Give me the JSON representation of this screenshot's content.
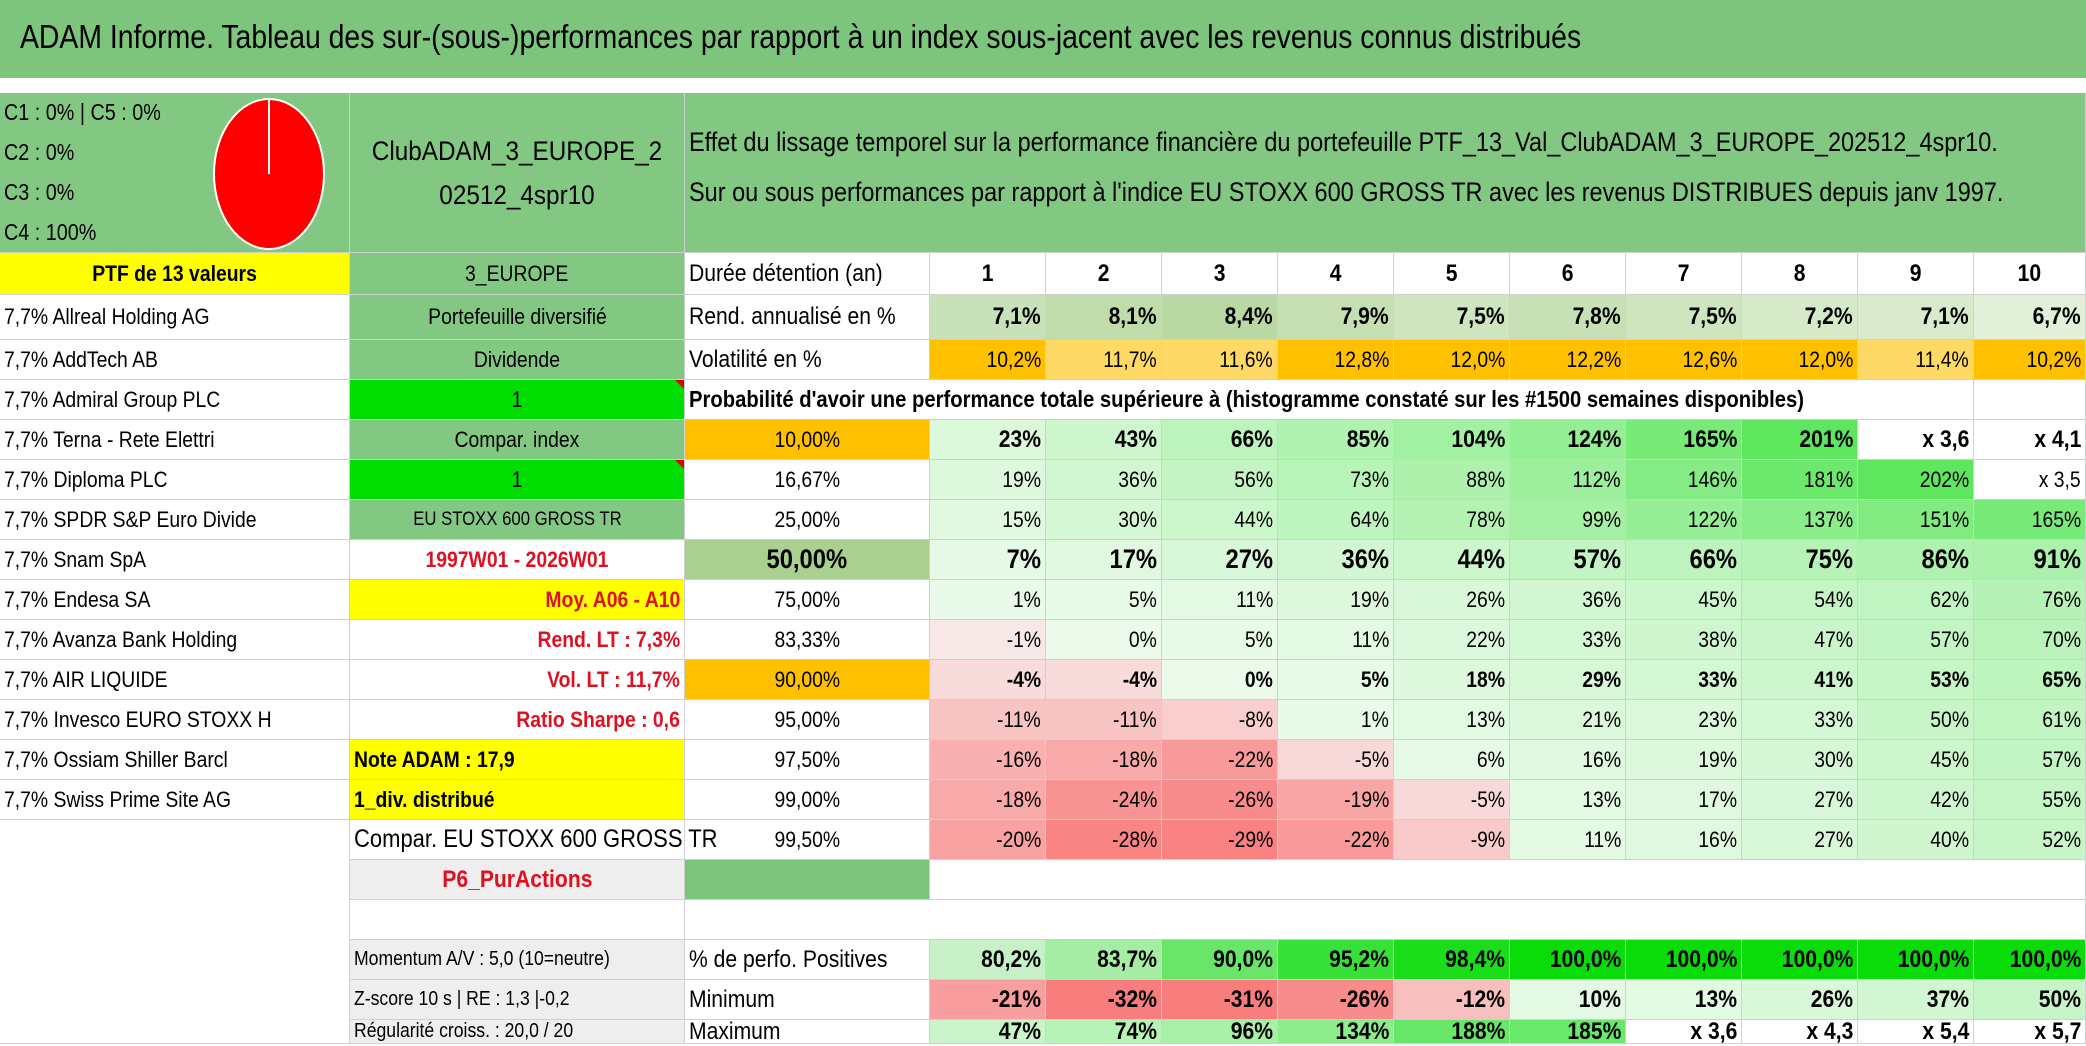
{
  "title": "ADAM Informe. Tableau des sur-(sous-)performances par rapport à un index sous-jacent avec les revenus connus distribués",
  "legend": [
    "C1 : 0% | C5 : 0%",
    "C2 : 0%",
    "C3 : 0%",
    "C4 : 100%"
  ],
  "pie": {
    "color": "#ff0000",
    "fraction": 1.0
  },
  "portfolio_name": "ClubADAM_3_EUROPE_202512_4spr10",
  "effect_text": [
    "Effet du lissage temporel sur la performance financière du portefeuille PTF_13_Val_ClubADAM_3_EUROPE_202512_4spr10.",
    "Sur ou sous performances par rapport à l'indice EU STOXX 600 GROSS TR avec les revenus DISTRIBUES depuis janv 1997."
  ],
  "ptf_header": "PTF de 13 valeurs",
  "holdings": [
    "7,7% Allreal Holding AG",
    "7,7% AddTech AB",
    "7,7% Admiral Group PLC",
    "7,7% Terna - Rete Elettri",
    "7,7% Diploma PLC",
    "7,7% SPDR S&P Euro Divide",
    "7,7% Snam SpA",
    "7,7% Endesa SA",
    "7,7% Avanza Bank Holding",
    "7,7% AIR LIQUIDE",
    "7,7% Invesco EURO STOXX H",
    "7,7% Ossiam Shiller Barcl",
    "7,7% Swiss Prime Site AG"
  ],
  "info": {
    "region": "3_EUROPE",
    "type": "Portefeuille diversifié",
    "dividende": "Dividende",
    "one_a": "1",
    "compar_index": "Compar. index",
    "one_b": "1",
    "index_name": "EU STOXX 600 GROSS TR",
    "period": "1997W01 - 2026W01",
    "moy": "Moy. A06 - A10",
    "rend_lt": "Rend. LT : 7,3%",
    "vol_lt": "Vol. LT : 11,7%",
    "sharpe": "Ratio Sharpe : 0,6",
    "note": "Note ADAM : 17,9",
    "div": "1_div. distribué",
    "compar_long": "Compar. EU STOXX 600 GROSS TR",
    "p6": "P6_PurActions",
    "momentum": "Momentum A/V : 5,0 (10=neutre)",
    "zscore": "Z-score 10 s | RE : 1,3 |-0,2",
    "regularite": "Régularité croiss. : 20,0 / 20"
  },
  "duration_label": "Durée détention (an)",
  "years": [
    "1",
    "2",
    "3",
    "4",
    "5",
    "6",
    "7",
    "8",
    "9",
    "10"
  ],
  "rend_label": "Rend. annualisé en %",
  "rend": [
    "7,1%",
    "8,1%",
    "8,4%",
    "7,9%",
    "7,5%",
    "7,8%",
    "7,5%",
    "7,2%",
    "7,1%",
    "6,7%"
  ],
  "vol_label": "Volatilité en %",
  "vol": [
    "10,2%",
    "11,7%",
    "11,6%",
    "12,8%",
    "12,0%",
    "12,2%",
    "12,6%",
    "12,0%",
    "11,4%",
    "10,2%"
  ],
  "prob_title": "Probabilité d'avoir une performance totale supérieure à (histogramme constaté sur les #1500 semaines disponibles)",
  "prob_rows": [
    {
      "p": "10,00%",
      "v": [
        "23%",
        "43%",
        "66%",
        "85%",
        "104%",
        "124%",
        "165%",
        "201%",
        "x 3,6",
        "x 4,1"
      ]
    },
    {
      "p": "16,67%",
      "v": [
        "19%",
        "36%",
        "56%",
        "73%",
        "88%",
        "112%",
        "146%",
        "181%",
        "202%",
        "x 3,5"
      ]
    },
    {
      "p": "25,00%",
      "v": [
        "15%",
        "30%",
        "44%",
        "64%",
        "78%",
        "99%",
        "122%",
        "137%",
        "151%",
        "165%"
      ]
    },
    {
      "p": "50,00%",
      "v": [
        "7%",
        "17%",
        "27%",
        "36%",
        "44%",
        "57%",
        "66%",
        "75%",
        "86%",
        "91%"
      ]
    },
    {
      "p": "75,00%",
      "v": [
        "1%",
        "5%",
        "11%",
        "19%",
        "26%",
        "36%",
        "45%",
        "54%",
        "62%",
        "76%"
      ]
    },
    {
      "p": "83,33%",
      "v": [
        "-1%",
        "0%",
        "5%",
        "11%",
        "22%",
        "33%",
        "38%",
        "47%",
        "57%",
        "70%"
      ]
    },
    {
      "p": "90,00%",
      "v": [
        "-4%",
        "-4%",
        "0%",
        "5%",
        "18%",
        "29%",
        "33%",
        "41%",
        "53%",
        "65%"
      ]
    },
    {
      "p": "95,00%",
      "v": [
        "-11%",
        "-11%",
        "-8%",
        "1%",
        "13%",
        "21%",
        "23%",
        "33%",
        "50%",
        "61%"
      ]
    },
    {
      "p": "97,50%",
      "v": [
        "-16%",
        "-18%",
        "-22%",
        "-5%",
        "6%",
        "16%",
        "19%",
        "30%",
        "45%",
        "57%"
      ]
    },
    {
      "p": "99,00%",
      "v": [
        "-18%",
        "-24%",
        "-26%",
        "-19%",
        "-5%",
        "13%",
        "17%",
        "27%",
        "42%",
        "55%"
      ]
    },
    {
      "p": "99,50%",
      "v": [
        "-20%",
        "-28%",
        "-29%",
        "-22%",
        "-9%",
        "11%",
        "16%",
        "27%",
        "40%",
        "52%"
      ]
    }
  ],
  "stats": [
    {
      "label": "% de perfo. Positives",
      "v": [
        "80,2%",
        "83,7%",
        "90,0%",
        "95,2%",
        "98,4%",
        "100,0%",
        "100,0%",
        "100,0%",
        "100,0%",
        "100,0%"
      ]
    },
    {
      "label": "Minimum",
      "v": [
        "-21%",
        "-32%",
        "-31%",
        "-26%",
        "-12%",
        "10%",
        "13%",
        "26%",
        "37%",
        "50%"
      ]
    },
    {
      "label": "Maximum",
      "v": [
        "47%",
        "74%",
        "96%",
        "134%",
        "188%",
        "185%",
        "x 3,6",
        "x 4,3",
        "x 5,4",
        "x 5,7"
      ]
    }
  ],
  "colors": {
    "title_green": "#7dc57d",
    "mid_green": "#82c882",
    "bright_green": "#00dd00",
    "yellow": "#ffff00",
    "orange": "#ffc000",
    "rend_green": "#c6e0b4",
    "red_text": "#e01020"
  }
}
